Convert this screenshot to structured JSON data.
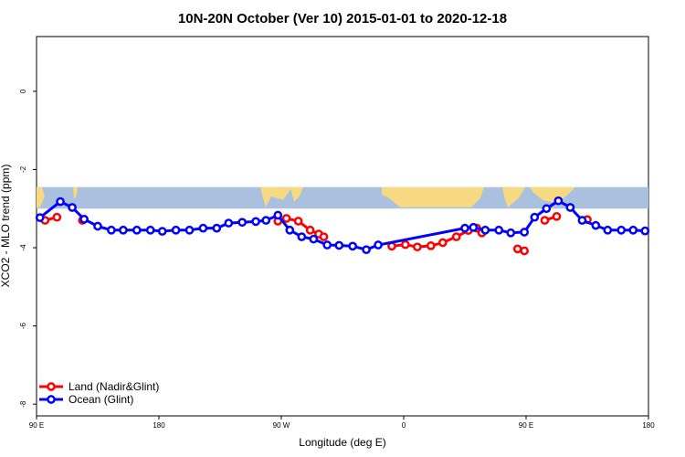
{
  "chart_data": {
    "type": "line",
    "title": "10N-20N October (Ver 10)   2015-01-01 to 2020-12-18",
    "xlabel": "Longitude (deg E)",
    "ylabel": "XCO2 - MLO trend (ppm)",
    "x_tick_labels": [
      "90 E",
      "180",
      "90 W",
      "0",
      "90 E",
      "180"
    ],
    "y_tick_labels": [
      "0",
      "-2",
      "-4",
      "-6",
      "-8"
    ],
    "y_ticks": [
      0,
      -2,
      -4,
      -6,
      -8
    ],
    "ylim": [
      -8.3,
      1.4
    ],
    "xlim": [
      90,
      450
    ],
    "grid": false,
    "legend_placement": "bottom-left",
    "land_mask_band": {
      "y_top": -2.45,
      "y_bottom": -3.0,
      "ocean_color": "#a9c0df",
      "land_color": "#f7d982"
    },
    "series": [
      {
        "name": "Land (Nadir&Glint)",
        "color": "#ff0000",
        "segments": [
          [
            [
              95,
              -3.3
            ],
            [
              102,
              -3.22
            ]
          ],
          [
            [
              117,
              -3.3
            ]
          ],
          [
            [
              232,
              -3.32
            ],
            [
              237,
              -3.25
            ],
            [
              244,
              -3.32
            ],
            [
              251,
              -3.55
            ],
            [
              256,
              -3.65
            ],
            [
              259,
              -3.72
            ]
          ],
          [
            [
              299,
              -3.96
            ],
            [
              307,
              -3.92
            ],
            [
              314,
              -3.98
            ],
            [
              322,
              -3.95
            ],
            [
              329,
              -3.87
            ],
            [
              337,
              -3.72
            ],
            [
              344,
              -3.56
            ],
            [
              349,
              -3.5
            ],
            [
              352,
              -3.62
            ]
          ],
          [
            [
              373,
              -4.03
            ],
            [
              377,
              -4.08
            ]
          ],
          [
            [
              389,
              -3.3
            ],
            [
              396,
              -3.2
            ]
          ],
          [
            [
              414,
              -3.28
            ]
          ]
        ]
      },
      {
        "name": "Ocean (Glint)",
        "color": "#0000ff",
        "points": [
          [
            92,
            -3.23
          ],
          [
            104,
            -2.82
          ],
          [
            111,
            -2.97
          ],
          [
            118,
            -3.27
          ],
          [
            126,
            -3.45
          ],
          [
            134,
            -3.55
          ],
          [
            141,
            -3.55
          ],
          [
            149,
            -3.55
          ],
          [
            157,
            -3.55
          ],
          [
            164,
            -3.58
          ],
          [
            172,
            -3.55
          ],
          [
            180,
            -3.55
          ],
          [
            188,
            -3.5
          ],
          [
            196,
            -3.5
          ],
          [
            203,
            -3.37
          ],
          [
            211,
            -3.35
          ],
          [
            219,
            -3.33
          ],
          [
            225,
            -3.3
          ],
          [
            232,
            -3.17
          ],
          [
            239,
            -3.55
          ],
          [
            246,
            -3.72
          ],
          [
            253,
            -3.78
          ],
          [
            261,
            -3.93
          ],
          [
            268,
            -3.94
          ],
          [
            276,
            -3.96
          ],
          [
            284,
            -4.05
          ],
          [
            291,
            -3.93
          ],
          [
            342,
            -3.5
          ],
          [
            347,
            -3.48
          ],
          [
            354,
            -3.55
          ],
          [
            362,
            -3.55
          ],
          [
            369,
            -3.62
          ],
          [
            377,
            -3.6
          ],
          [
            383,
            -3.22
          ],
          [
            390,
            -3.0
          ],
          [
            397,
            -2.8
          ],
          [
            404,
            -2.97
          ],
          [
            411,
            -3.3
          ],
          [
            419,
            -3.43
          ],
          [
            426,
            -3.55
          ],
          [
            434,
            -3.55
          ],
          [
            441,
            -3.55
          ],
          [
            448,
            -3.57
          ]
        ]
      }
    ]
  }
}
